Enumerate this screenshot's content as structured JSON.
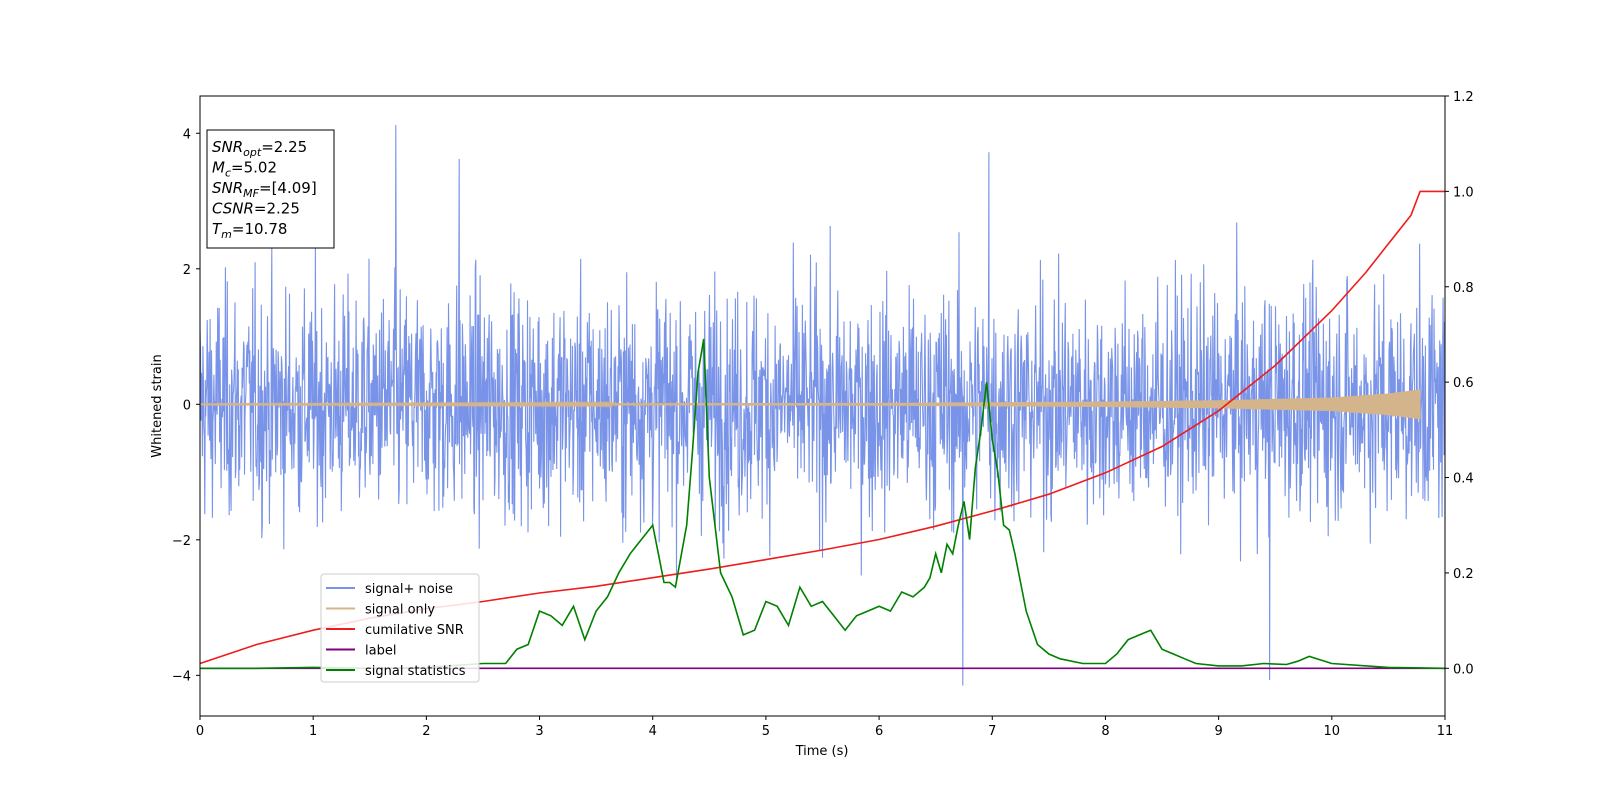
{
  "chart_data": {
    "type": "line",
    "xlabel": "Time (s)",
    "ylabel": "Whitened strain",
    "xlim": [
      0,
      11
    ],
    "ylim": [
      -4.6,
      4.55
    ],
    "y2lim": [
      -0.1,
      1.2
    ],
    "x_ticks": [
      "0",
      "1",
      "2",
      "3",
      "4",
      "5",
      "6",
      "7",
      "8",
      "9",
      "10",
      "11"
    ],
    "y_ticks": [
      "-4",
      "-2",
      "0",
      "2",
      "4"
    ],
    "y2_ticks": [
      "0.0",
      "0.2",
      "0.4",
      "0.6",
      "0.8",
      "1.0",
      "1.2"
    ],
    "grid": false,
    "legend_placement": "lower-left",
    "annotation": {
      "lines": [
        {
          "main": "SNR",
          "sub": "opt",
          "rest": "=2.25"
        },
        {
          "main": "M",
          "sub": "c",
          "rest": "=5.02"
        },
        {
          "main": "SNR",
          "sub": "MF",
          "rest": "=[4.09]"
        },
        {
          "main": "CSNR",
          "sub": "",
          "rest": "=2.25"
        },
        {
          "main": "T",
          "sub": "m",
          "rest": "=10.78"
        }
      ]
    },
    "series": [
      {
        "name": "signal+ noise",
        "color": "#7893e8",
        "axis": "left",
        "description_values": {
          "mean": 0.0,
          "std": 1.0,
          "peaks": [
            [
              1.73,
              4.12
            ],
            [
              6.74,
              -4.15
            ],
            [
              9.45,
              -4.07
            ],
            [
              6.97,
              3.72
            ],
            [
              2.29,
              3.62
            ]
          ]
        }
      },
      {
        "name": "signal only",
        "color": "#d4b48a",
        "axis": "left",
        "envelope": [
          [
            0,
            0.005
          ],
          [
            6,
            0.02
          ],
          [
            8,
            0.04
          ],
          [
            9,
            0.06
          ],
          [
            10,
            0.1
          ],
          [
            10.5,
            0.16
          ],
          [
            10.78,
            0.22
          ]
        ]
      },
      {
        "name": "cumilative SNR",
        "color": "#ee1c1c",
        "axis": "right",
        "x": [
          0,
          0.5,
          1,
          1.5,
          2,
          2.5,
          3,
          3.5,
          4,
          4.5,
          5,
          5.5,
          6,
          6.5,
          7,
          7.5,
          8,
          8.5,
          9,
          9.5,
          10,
          10.3,
          10.5,
          10.7,
          10.78,
          11
        ],
        "y": [
          0.01,
          0.05,
          0.08,
          0.105,
          0.125,
          0.14,
          0.158,
          0.172,
          0.19,
          0.208,
          0.228,
          0.248,
          0.27,
          0.298,
          0.33,
          0.365,
          0.41,
          0.465,
          0.54,
          0.635,
          0.75,
          0.83,
          0.89,
          0.95,
          1.0,
          1.0
        ]
      },
      {
        "name": "label",
        "color": "#800080",
        "axis": "right",
        "x": [
          0,
          11
        ],
        "y": [
          0.0,
          0.0
        ]
      },
      {
        "name": "signal statistics",
        "color": "#008000",
        "axis": "right",
        "x": [
          0,
          0.5,
          1,
          1.5,
          2,
          2.5,
          2.7,
          2.8,
          2.9,
          3.0,
          3.1,
          3.2,
          3.3,
          3.4,
          3.5,
          3.6,
          3.7,
          3.8,
          3.9,
          4.0,
          4.05,
          4.1,
          4.15,
          4.2,
          4.3,
          4.35,
          4.4,
          4.45,
          4.5,
          4.6,
          4.7,
          4.8,
          4.9,
          5.0,
          5.1,
          5.2,
          5.3,
          5.4,
          5.5,
          5.6,
          5.7,
          5.8,
          5.9,
          6.0,
          6.1,
          6.2,
          6.3,
          6.4,
          6.45,
          6.5,
          6.55,
          6.6,
          6.65,
          6.7,
          6.75,
          6.8,
          6.85,
          6.9,
          6.95,
          7.0,
          7.05,
          7.1,
          7.15,
          7.2,
          7.3,
          7.4,
          7.5,
          7.6,
          7.8,
          8.0,
          8.1,
          8.2,
          8.3,
          8.4,
          8.5,
          8.6,
          8.7,
          8.8,
          9.0,
          9.2,
          9.4,
          9.6,
          9.7,
          9.8,
          10.0,
          10.5,
          11
        ],
        "y": [
          0.0,
          0.0,
          0.002,
          0.0,
          0.002,
          0.01,
          0.01,
          0.04,
          0.05,
          0.12,
          0.11,
          0.09,
          0.13,
          0.06,
          0.12,
          0.15,
          0.2,
          0.24,
          0.27,
          0.3,
          0.24,
          0.18,
          0.18,
          0.17,
          0.3,
          0.45,
          0.62,
          0.69,
          0.4,
          0.2,
          0.15,
          0.07,
          0.08,
          0.14,
          0.13,
          0.09,
          0.17,
          0.13,
          0.14,
          0.11,
          0.08,
          0.11,
          0.12,
          0.13,
          0.12,
          0.16,
          0.15,
          0.17,
          0.19,
          0.24,
          0.2,
          0.26,
          0.24,
          0.3,
          0.35,
          0.27,
          0.42,
          0.5,
          0.6,
          0.48,
          0.41,
          0.3,
          0.29,
          0.24,
          0.12,
          0.05,
          0.03,
          0.02,
          0.01,
          0.01,
          0.03,
          0.06,
          0.07,
          0.08,
          0.04,
          0.03,
          0.02,
          0.01,
          0.005,
          0.005,
          0.01,
          0.008,
          0.015,
          0.025,
          0.01,
          0.002,
          0.0
        ]
      }
    ]
  }
}
